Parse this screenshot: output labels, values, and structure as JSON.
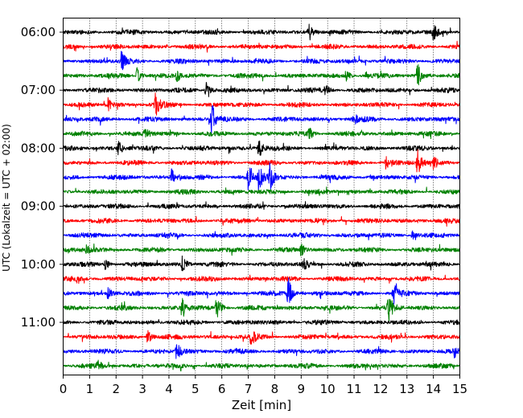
{
  "chart_data": {
    "type": "line",
    "title": "",
    "xlabel": "Zeit  [min]",
    "ylabel": "UTC (Lokalzeit = UTC + 02:00)",
    "xlim": [
      0,
      15
    ],
    "x_ticks": [
      "0",
      "1",
      "2",
      "3",
      "4",
      "5",
      "6",
      "7",
      "8",
      "9",
      "10",
      "11",
      "12",
      "13",
      "14",
      "15"
    ],
    "y_ticks": [
      "06:00",
      "07:00",
      "08:00",
      "09:00",
      "10:00",
      "11:00"
    ],
    "grid": "vertical dotted lines at every minute",
    "trace_interval_min": 15,
    "first_trace": "06:00",
    "color_cycle": [
      "#000000",
      "#ff0000",
      "#0000ff",
      "#008000"
    ],
    "traces": [
      {
        "start": "06:00",
        "color": "#000000",
        "events": [
          {
            "t": 9.3,
            "amp": 0.45
          },
          {
            "t": 14.0,
            "amp": 0.5
          }
        ]
      },
      {
        "start": "06:15",
        "color": "#ff0000",
        "events": []
      },
      {
        "start": "06:30",
        "color": "#0000ff",
        "events": [
          {
            "t": 2.2,
            "amp": 0.55
          }
        ]
      },
      {
        "start": "06:45",
        "color": "#008000",
        "events": [
          {
            "t": 2.8,
            "amp": 0.4
          },
          {
            "t": 4.3,
            "amp": 0.3
          },
          {
            "t": 10.7,
            "amp": 0.3
          },
          {
            "t": 13.4,
            "amp": 0.75
          }
        ]
      },
      {
        "start": "07:00",
        "color": "#000000",
        "events": [
          {
            "t": 5.4,
            "amp": 0.45
          },
          {
            "t": 9.9,
            "amp": 0.3
          }
        ]
      },
      {
        "start": "07:15",
        "color": "#ff0000",
        "events": [
          {
            "t": 1.7,
            "amp": 0.3
          },
          {
            "t": 3.5,
            "amp": 0.6
          }
        ]
      },
      {
        "start": "07:30",
        "color": "#0000ff",
        "events": [
          {
            "t": 5.6,
            "amp": 1.1
          },
          {
            "t": 11.0,
            "amp": 0.25
          }
        ]
      },
      {
        "start": "07:45",
        "color": "#008000",
        "events": [
          {
            "t": 3.1,
            "amp": 0.3
          },
          {
            "t": 9.3,
            "amp": 0.3
          }
        ]
      },
      {
        "start": "08:00",
        "color": "#000000",
        "events": [
          {
            "t": 2.1,
            "amp": 0.35
          },
          {
            "t": 7.4,
            "amp": 0.55
          }
        ]
      },
      {
        "start": "08:15",
        "color": "#ff0000",
        "events": [
          {
            "t": 12.2,
            "amp": 0.35
          },
          {
            "t": 13.4,
            "amp": 0.75
          },
          {
            "t": 14.0,
            "amp": 0.35
          }
        ]
      },
      {
        "start": "08:30",
        "color": "#0000ff",
        "events": [
          {
            "t": 4.1,
            "amp": 0.4
          },
          {
            "t": 7.0,
            "amp": 0.6
          },
          {
            "t": 7.4,
            "amp": 0.75
          },
          {
            "t": 7.8,
            "amp": 0.85
          }
        ]
      },
      {
        "start": "08:45",
        "color": "#008000",
        "events": []
      },
      {
        "start": "09:00",
        "color": "#000000",
        "events": []
      },
      {
        "start": "09:15",
        "color": "#ff0000",
        "events": []
      },
      {
        "start": "09:30",
        "color": "#0000ff",
        "events": [
          {
            "t": 13.2,
            "amp": 0.25
          }
        ]
      },
      {
        "start": "09:45",
        "color": "#008000",
        "events": [
          {
            "t": 0.9,
            "amp": 0.25
          },
          {
            "t": 9.0,
            "amp": 0.3
          }
        ]
      },
      {
        "start": "10:00",
        "color": "#000000",
        "events": [
          {
            "t": 1.6,
            "amp": 0.3
          },
          {
            "t": 4.5,
            "amp": 0.45
          },
          {
            "t": 9.1,
            "amp": 0.3
          }
        ]
      },
      {
        "start": "10:15",
        "color": "#ff0000",
        "events": []
      },
      {
        "start": "10:30",
        "color": "#0000ff",
        "events": [
          {
            "t": 1.7,
            "amp": 0.3
          },
          {
            "t": 8.5,
            "amp": 0.95
          },
          {
            "t": 12.5,
            "amp": 0.5
          }
        ]
      },
      {
        "start": "10:45",
        "color": "#008000",
        "events": [
          {
            "t": 4.5,
            "amp": 0.6
          },
          {
            "t": 5.8,
            "amp": 0.8
          },
          {
            "t": 12.3,
            "amp": 0.9
          }
        ]
      },
      {
        "start": "11:00",
        "color": "#000000",
        "events": []
      },
      {
        "start": "11:15",
        "color": "#ff0000",
        "events": [
          {
            "t": 3.2,
            "amp": 0.4
          },
          {
            "t": 7.1,
            "amp": 0.55
          }
        ]
      },
      {
        "start": "11:30",
        "color": "#0000ff",
        "events": [
          {
            "t": 4.3,
            "amp": 0.5
          },
          {
            "t": 14.8,
            "amp": 0.3
          }
        ]
      },
      {
        "start": "11:45",
        "color": "#008000",
        "events": [
          {
            "t": 1.3,
            "amp": 0.25
          }
        ]
      }
    ]
  }
}
